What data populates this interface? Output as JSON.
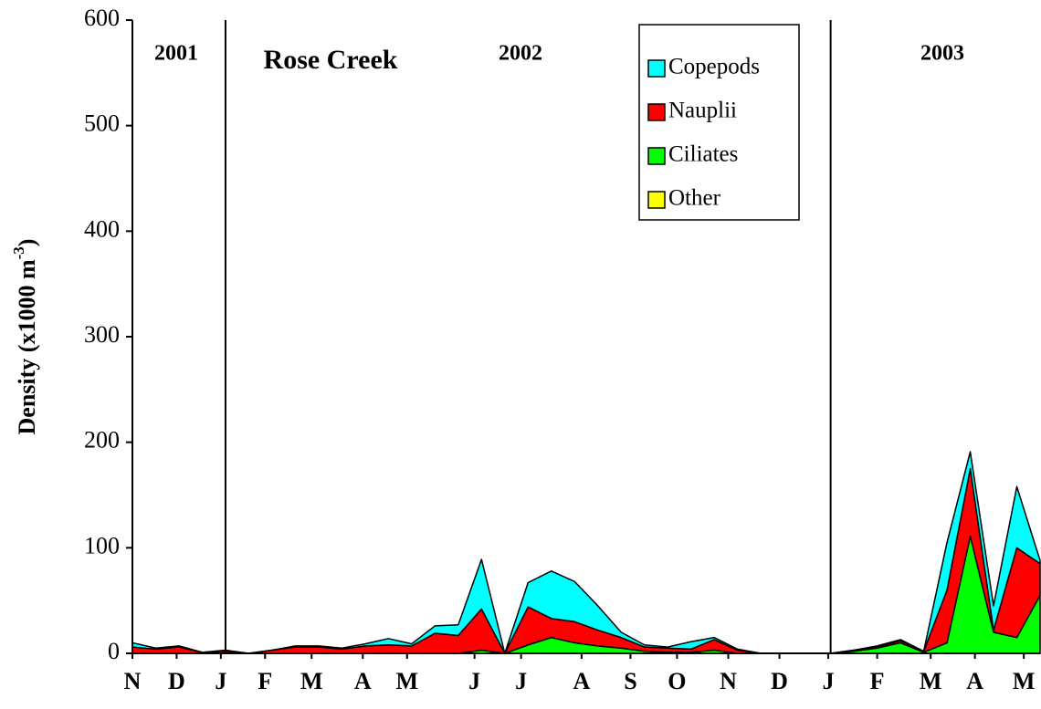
{
  "chart_data": {
    "type": "stacked_area",
    "ylabel": {
      "text": "Density (x1000 m",
      "sup": "-3",
      "suffix": ")"
    },
    "annotations": [
      "2001",
      "Rose Creek",
      "2002",
      "2003"
    ],
    "year_breaks": [
      4,
      30
    ],
    "x": [
      0,
      1,
      2,
      3,
      4,
      5,
      6,
      7,
      8,
      9,
      10,
      11,
      12,
      13,
      14,
      15,
      16,
      17,
      18,
      19,
      20,
      21,
      22,
      23,
      24,
      25,
      26,
      27,
      28,
      29,
      30,
      31,
      32,
      33,
      34,
      35,
      36,
      37,
      38,
      39
    ],
    "xlim": [
      0,
      39
    ],
    "xticks": [
      {
        "value": 0,
        "label": "N"
      },
      {
        "value": 1.9,
        "label": "D"
      },
      {
        "value": 3.8,
        "label": "J"
      },
      {
        "value": 5.7,
        "label": "F"
      },
      {
        "value": 7.7,
        "label": "M"
      },
      {
        "value": 9.9,
        "label": "A"
      },
      {
        "value": 11.8,
        "label": "M"
      },
      {
        "value": 14.7,
        "label": "J"
      },
      {
        "value": 16.7,
        "label": "J"
      },
      {
        "value": 19.3,
        "label": "A"
      },
      {
        "value": 21.4,
        "label": "S"
      },
      {
        "value": 23.4,
        "label": "O"
      },
      {
        "value": 25.6,
        "label": "N"
      },
      {
        "value": 27.8,
        "label": "D"
      },
      {
        "value": 29.9,
        "label": "J"
      },
      {
        "value": 32,
        "label": "F"
      },
      {
        "value": 34.3,
        "label": "M"
      },
      {
        "value": 36.2,
        "label": "A"
      },
      {
        "value": 38.3,
        "label": "M"
      }
    ],
    "ylim": [
      0,
      600
    ],
    "yticks": [
      0,
      100,
      200,
      300,
      400,
      500,
      600
    ],
    "legend": "top-right",
    "series": [
      {
        "name": "Copepods",
        "color": "#00ffff",
        "values": [
          4,
          1,
          1,
          0,
          1,
          0,
          0,
          1,
          1,
          1,
          2,
          6,
          2,
          7,
          10,
          47,
          0,
          23,
          45,
          38,
          23,
          5,
          2,
          1,
          7,
          2,
          1,
          0,
          0,
          0,
          0,
          0,
          1,
          1,
          0,
          45,
          16,
          23,
          58,
          3
        ]
      },
      {
        "name": "Nauplii",
        "color": "#ff0000",
        "values": [
          6,
          4,
          6,
          1,
          2,
          0,
          3,
          6,
          6,
          4,
          7,
          8,
          7,
          19,
          17,
          39,
          0,
          36,
          18,
          20,
          15,
          10,
          4,
          4,
          3,
          10,
          3,
          0,
          0,
          0,
          0,
          1,
          1,
          2,
          1,
          50,
          64,
          2,
          85,
          30
        ]
      },
      {
        "name": "Ciliates",
        "color": "#00ff00",
        "values": [
          0,
          0,
          0,
          0,
          0,
          0,
          0,
          0,
          0,
          0,
          0,
          0,
          0,
          0,
          0,
          3,
          0,
          8,
          15,
          10,
          7,
          5,
          2,
          1,
          1,
          3,
          0,
          0,
          0,
          0,
          0,
          2,
          5,
          10,
          1,
          10,
          111,
          20,
          15,
          55
        ]
      },
      {
        "name": "Other",
        "color": "#ffff00",
        "values": [
          0,
          0,
          0,
          0,
          0,
          0,
          0,
          0,
          0,
          0,
          0,
          0,
          0,
          0,
          0,
          0,
          0,
          0,
          0,
          0,
          0,
          0,
          0,
          0,
          0,
          0,
          0,
          0,
          0,
          0,
          0,
          0,
          0,
          0,
          0,
          0,
          0,
          0,
          0,
          0
        ]
      }
    ]
  }
}
